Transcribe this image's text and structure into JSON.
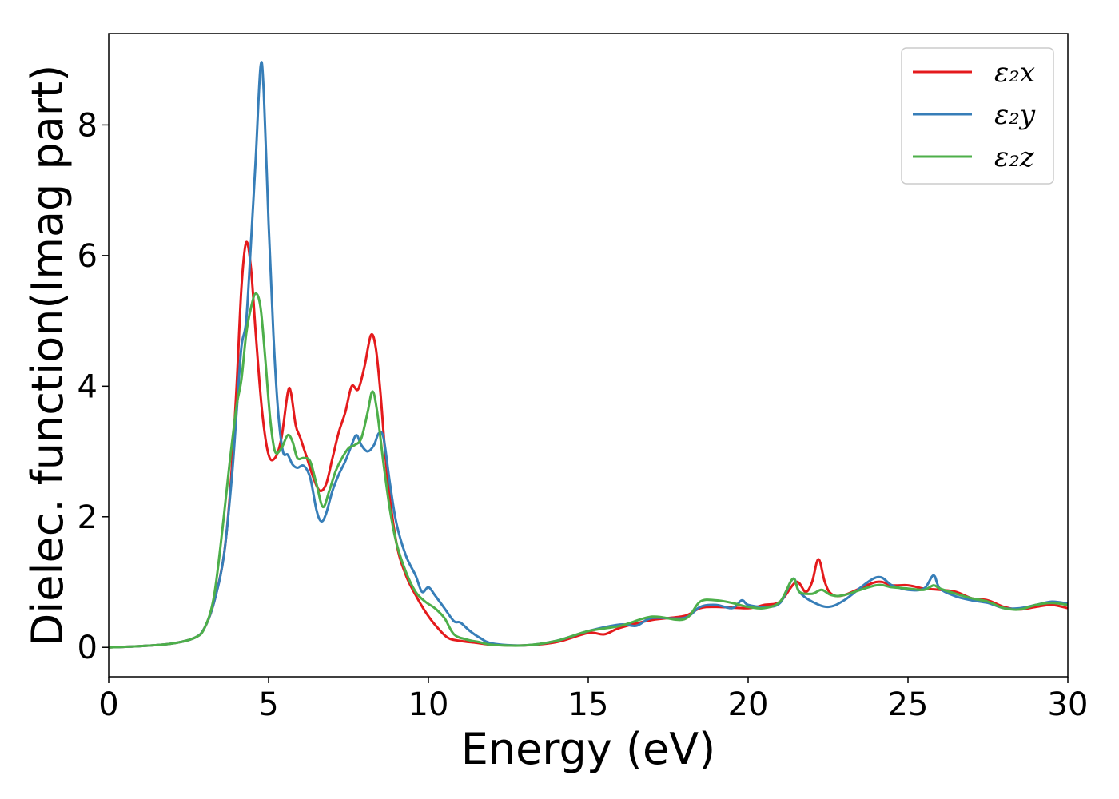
{
  "chart_data": {
    "type": "line",
    "xlabel": "Energy (eV)",
    "ylabel": "Dielec. function(Imag part)",
    "xlim": [
      0,
      30
    ],
    "ylim": [
      -0.45,
      9.4
    ],
    "xticks": [
      0,
      5,
      10,
      15,
      20,
      25,
      30
    ],
    "yticks": [
      0,
      2,
      4,
      6,
      8
    ],
    "grid": false,
    "legend_position": "top-right",
    "series": [
      {
        "name": "ε₂x",
        "color": "#e41a1c",
        "points": [
          [
            0,
            0
          ],
          [
            1,
            0.02
          ],
          [
            2,
            0.06
          ],
          [
            2.7,
            0.15
          ],
          [
            3.0,
            0.3
          ],
          [
            3.3,
            0.7
          ],
          [
            3.6,
            1.4
          ],
          [
            3.8,
            2.4
          ],
          [
            4.0,
            4.0
          ],
          [
            4.15,
            5.5
          ],
          [
            4.3,
            6.2
          ],
          [
            4.45,
            5.8
          ],
          [
            4.6,
            4.8
          ],
          [
            4.8,
            3.6
          ],
          [
            5.0,
            2.95
          ],
          [
            5.2,
            2.9
          ],
          [
            5.4,
            3.2
          ],
          [
            5.6,
            3.9
          ],
          [
            5.7,
            3.9
          ],
          [
            5.85,
            3.4
          ],
          [
            6.0,
            3.2
          ],
          [
            6.2,
            2.9
          ],
          [
            6.4,
            2.6
          ],
          [
            6.6,
            2.4
          ],
          [
            6.8,
            2.5
          ],
          [
            7.0,
            2.9
          ],
          [
            7.2,
            3.3
          ],
          [
            7.4,
            3.6
          ],
          [
            7.6,
            4.0
          ],
          [
            7.8,
            3.95
          ],
          [
            8.0,
            4.3
          ],
          [
            8.2,
            4.78
          ],
          [
            8.35,
            4.6
          ],
          [
            8.5,
            3.9
          ],
          [
            8.7,
            2.7
          ],
          [
            9.0,
            1.6
          ],
          [
            9.3,
            1.1
          ],
          [
            9.6,
            0.8
          ],
          [
            9.9,
            0.55
          ],
          [
            10.2,
            0.35
          ],
          [
            10.6,
            0.15
          ],
          [
            11.0,
            0.1
          ],
          [
            11.5,
            0.07
          ],
          [
            12.0,
            0.04
          ],
          [
            13.0,
            0.03
          ],
          [
            14.0,
            0.08
          ],
          [
            15.0,
            0.22
          ],
          [
            15.5,
            0.2
          ],
          [
            16.0,
            0.3
          ],
          [
            17.0,
            0.42
          ],
          [
            18.0,
            0.48
          ],
          [
            18.5,
            0.6
          ],
          [
            19.0,
            0.62
          ],
          [
            20.0,
            0.6
          ],
          [
            20.5,
            0.65
          ],
          [
            21.0,
            0.7
          ],
          [
            21.5,
            1.0
          ],
          [
            21.8,
            0.85
          ],
          [
            22.0,
            1.0
          ],
          [
            22.2,
            1.35
          ],
          [
            22.4,
            1.0
          ],
          [
            22.6,
            0.82
          ],
          [
            23.0,
            0.8
          ],
          [
            24.0,
            1.0
          ],
          [
            24.5,
            0.95
          ],
          [
            25.0,
            0.95
          ],
          [
            25.5,
            0.9
          ],
          [
            26.0,
            0.88
          ],
          [
            26.5,
            0.85
          ],
          [
            27.0,
            0.75
          ],
          [
            27.5,
            0.72
          ],
          [
            28.0,
            0.62
          ],
          [
            28.5,
            0.58
          ],
          [
            29.0,
            0.62
          ],
          [
            29.5,
            0.65
          ],
          [
            30.0,
            0.6
          ]
        ]
      },
      {
        "name": "ε₂y",
        "color": "#377eb8",
        "points": [
          [
            0,
            0
          ],
          [
            1,
            0.02
          ],
          [
            2,
            0.06
          ],
          [
            2.7,
            0.15
          ],
          [
            3.0,
            0.3
          ],
          [
            3.3,
            0.7
          ],
          [
            3.6,
            1.4
          ],
          [
            3.85,
            2.6
          ],
          [
            4.0,
            3.6
          ],
          [
            4.15,
            4.6
          ],
          [
            4.3,
            5.0
          ],
          [
            4.45,
            6.2
          ],
          [
            4.6,
            7.5
          ],
          [
            4.75,
            8.9
          ],
          [
            4.85,
            8.5
          ],
          [
            5.0,
            6.5
          ],
          [
            5.15,
            4.8
          ],
          [
            5.3,
            3.6
          ],
          [
            5.45,
            3.0
          ],
          [
            5.6,
            2.95
          ],
          [
            5.75,
            2.8
          ],
          [
            5.9,
            2.75
          ],
          [
            6.1,
            2.78
          ],
          [
            6.3,
            2.6
          ],
          [
            6.5,
            2.1
          ],
          [
            6.65,
            1.93
          ],
          [
            6.8,
            2.05
          ],
          [
            7.0,
            2.4
          ],
          [
            7.2,
            2.65
          ],
          [
            7.4,
            2.85
          ],
          [
            7.6,
            3.1
          ],
          [
            7.75,
            3.25
          ],
          [
            7.9,
            3.1
          ],
          [
            8.1,
            3.0
          ],
          [
            8.3,
            3.1
          ],
          [
            8.45,
            3.28
          ],
          [
            8.6,
            3.2
          ],
          [
            8.8,
            2.5
          ],
          [
            9.0,
            1.9
          ],
          [
            9.3,
            1.4
          ],
          [
            9.6,
            1.1
          ],
          [
            9.8,
            0.85
          ],
          [
            10.0,
            0.92
          ],
          [
            10.2,
            0.8
          ],
          [
            10.5,
            0.6
          ],
          [
            10.8,
            0.4
          ],
          [
            11.0,
            0.38
          ],
          [
            11.3,
            0.25
          ],
          [
            11.6,
            0.15
          ],
          [
            12.0,
            0.06
          ],
          [
            13.0,
            0.03
          ],
          [
            14.0,
            0.1
          ],
          [
            15.0,
            0.25
          ],
          [
            16.0,
            0.35
          ],
          [
            16.5,
            0.33
          ],
          [
            17.0,
            0.45
          ],
          [
            18.0,
            0.45
          ],
          [
            18.5,
            0.62
          ],
          [
            19.0,
            0.65
          ],
          [
            19.5,
            0.6
          ],
          [
            19.8,
            0.72
          ],
          [
            20.0,
            0.65
          ],
          [
            20.5,
            0.62
          ],
          [
            21.0,
            0.68
          ],
          [
            21.4,
            1.05
          ],
          [
            21.6,
            0.85
          ],
          [
            22.0,
            0.7
          ],
          [
            22.5,
            0.62
          ],
          [
            23.0,
            0.72
          ],
          [
            24.0,
            1.07
          ],
          [
            24.5,
            0.95
          ],
          [
            25.0,
            0.88
          ],
          [
            25.5,
            0.9
          ],
          [
            25.8,
            1.1
          ],
          [
            26.0,
            0.9
          ],
          [
            26.5,
            0.78
          ],
          [
            27.0,
            0.72
          ],
          [
            27.5,
            0.68
          ],
          [
            28.0,
            0.6
          ],
          [
            28.5,
            0.6
          ],
          [
            29.0,
            0.65
          ],
          [
            29.5,
            0.7
          ],
          [
            30.0,
            0.67
          ]
        ]
      },
      {
        "name": "ε₂z",
        "color": "#4daf4a",
        "points": [
          [
            0,
            0
          ],
          [
            1,
            0.02
          ],
          [
            2,
            0.06
          ],
          [
            2.7,
            0.15
          ],
          [
            3.0,
            0.3
          ],
          [
            3.3,
            0.8
          ],
          [
            3.6,
            2.0
          ],
          [
            3.8,
            2.9
          ],
          [
            4.0,
            3.7
          ],
          [
            4.15,
            4.1
          ],
          [
            4.3,
            4.8
          ],
          [
            4.45,
            5.2
          ],
          [
            4.6,
            5.42
          ],
          [
            4.75,
            5.2
          ],
          [
            4.9,
            4.4
          ],
          [
            5.05,
            3.5
          ],
          [
            5.2,
            3.0
          ],
          [
            5.4,
            3.05
          ],
          [
            5.6,
            3.25
          ],
          [
            5.75,
            3.15
          ],
          [
            5.9,
            2.9
          ],
          [
            6.1,
            2.9
          ],
          [
            6.3,
            2.85
          ],
          [
            6.5,
            2.5
          ],
          [
            6.7,
            2.15
          ],
          [
            6.9,
            2.4
          ],
          [
            7.1,
            2.7
          ],
          [
            7.3,
            2.9
          ],
          [
            7.5,
            3.05
          ],
          [
            7.7,
            3.1
          ],
          [
            7.9,
            3.2
          ],
          [
            8.1,
            3.6
          ],
          [
            8.25,
            3.92
          ],
          [
            8.4,
            3.6
          ],
          [
            8.6,
            2.8
          ],
          [
            8.8,
            2.1
          ],
          [
            9.0,
            1.6
          ],
          [
            9.3,
            1.15
          ],
          [
            9.6,
            0.85
          ],
          [
            9.9,
            0.7
          ],
          [
            10.2,
            0.6
          ],
          [
            10.5,
            0.45
          ],
          [
            10.8,
            0.2
          ],
          [
            11.2,
            0.12
          ],
          [
            11.6,
            0.08
          ],
          [
            12.0,
            0.04
          ],
          [
            13.0,
            0.03
          ],
          [
            14.0,
            0.1
          ],
          [
            15.0,
            0.25
          ],
          [
            16.0,
            0.33
          ],
          [
            17.0,
            0.47
          ],
          [
            18.0,
            0.43
          ],
          [
            18.5,
            0.7
          ],
          [
            19.0,
            0.72
          ],
          [
            19.5,
            0.68
          ],
          [
            20.0,
            0.62
          ],
          [
            20.5,
            0.6
          ],
          [
            21.0,
            0.7
          ],
          [
            21.4,
            1.05
          ],
          [
            21.6,
            0.85
          ],
          [
            22.0,
            0.82
          ],
          [
            22.3,
            0.88
          ],
          [
            22.6,
            0.8
          ],
          [
            23.0,
            0.8
          ],
          [
            24.0,
            0.95
          ],
          [
            24.5,
            0.92
          ],
          [
            25.0,
            0.9
          ],
          [
            25.5,
            0.88
          ],
          [
            25.8,
            0.95
          ],
          [
            26.0,
            0.9
          ],
          [
            26.5,
            0.82
          ],
          [
            27.0,
            0.75
          ],
          [
            27.5,
            0.7
          ],
          [
            28.0,
            0.6
          ],
          [
            28.5,
            0.58
          ],
          [
            29.0,
            0.65
          ],
          [
            29.5,
            0.68
          ],
          [
            30.0,
            0.65
          ]
        ]
      }
    ]
  }
}
